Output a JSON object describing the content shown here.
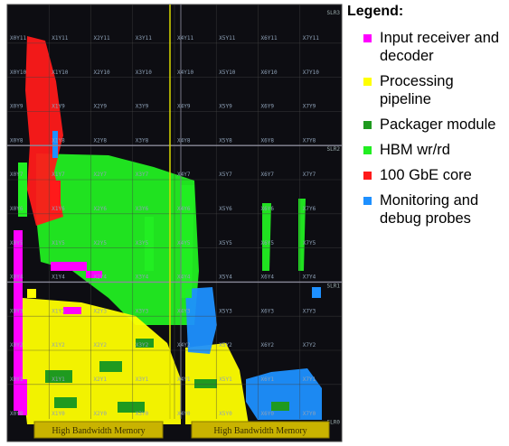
{
  "legend": {
    "title": "Legend:",
    "items": [
      {
        "label": "Input receiver and decoder",
        "color": "#ff00ff"
      },
      {
        "label": "Processing pipeline",
        "color": "#ffff00"
      },
      {
        "label": "Packager module",
        "color": "#1f9a1f"
      },
      {
        "label": "HBM wr/rd",
        "color": "#22ee22"
      },
      {
        "label": "100 GbE core",
        "color": "#ff1a1a"
      },
      {
        "label": "Monitoring and debug probes",
        "color": "#1e90ff"
      }
    ]
  },
  "floorplan": {
    "region_labels": [
      [
        "X0Y11",
        "X1Y11",
        "X2Y11",
        "X3Y11",
        "X4Y11",
        "X5Y11",
        "X6Y11",
        "X7Y11"
      ],
      [
        "X0Y10",
        "X1Y10",
        "X2Y10",
        "X3Y10",
        "X4Y10",
        "X5Y10",
        "X6Y10",
        "X7Y10"
      ],
      [
        "X0Y9",
        "X1Y9",
        "X2Y9",
        "X3Y9",
        "X4Y9",
        "X5Y9",
        "X6Y9",
        "X7Y9"
      ],
      [
        "X0Y8",
        "X1Y8",
        "X2Y8",
        "X3Y8",
        "X4Y8",
        "X5Y8",
        "X6Y8",
        "X7Y8"
      ],
      [
        "X0Y7",
        "X1Y7",
        "X2Y7",
        "X3Y7",
        "X4Y7",
        "X5Y7",
        "X6Y7",
        "X7Y7"
      ],
      [
        "X0Y6",
        "X1Y6",
        "X2Y6",
        "X3Y6",
        "X4Y6",
        "X5Y6",
        "X6Y6",
        "X7Y6"
      ],
      [
        "X0Y5",
        "X1Y5",
        "X2Y5",
        "X3Y5",
        "X4Y5",
        "X5Y5",
        "X6Y5",
        "X7Y5"
      ],
      [
        "X0Y4",
        "X1Y4",
        "X2Y4",
        "X3Y4",
        "X4Y4",
        "X5Y4",
        "X6Y4",
        "X7Y4"
      ],
      [
        "X0Y3",
        "X1Y3",
        "X2Y3",
        "X3Y3",
        "X4Y3",
        "X5Y3",
        "X6Y3",
        "X7Y3"
      ],
      [
        "X0Y2",
        "X1Y2",
        "X2Y2",
        "X3Y2",
        "X4Y2",
        "X5Y2",
        "X6Y2",
        "X7Y2"
      ],
      [
        "X0Y1",
        "X1Y1",
        "X2Y1",
        "X3Y1",
        "X4Y1",
        "X5Y1",
        "X6Y1",
        "X7Y1"
      ],
      [
        "X0Y0",
        "X1Y0",
        "X2Y0",
        "X3Y0",
        "X4Y0",
        "X5Y0",
        "X6Y0",
        "X7Y0"
      ]
    ],
    "slr_labels": [
      "SLR3",
      "SLR2",
      "SLR1",
      "SLR0"
    ],
    "memory_labels": [
      "High Bandwidth Memory",
      "High Bandwidth Memory"
    ]
  }
}
